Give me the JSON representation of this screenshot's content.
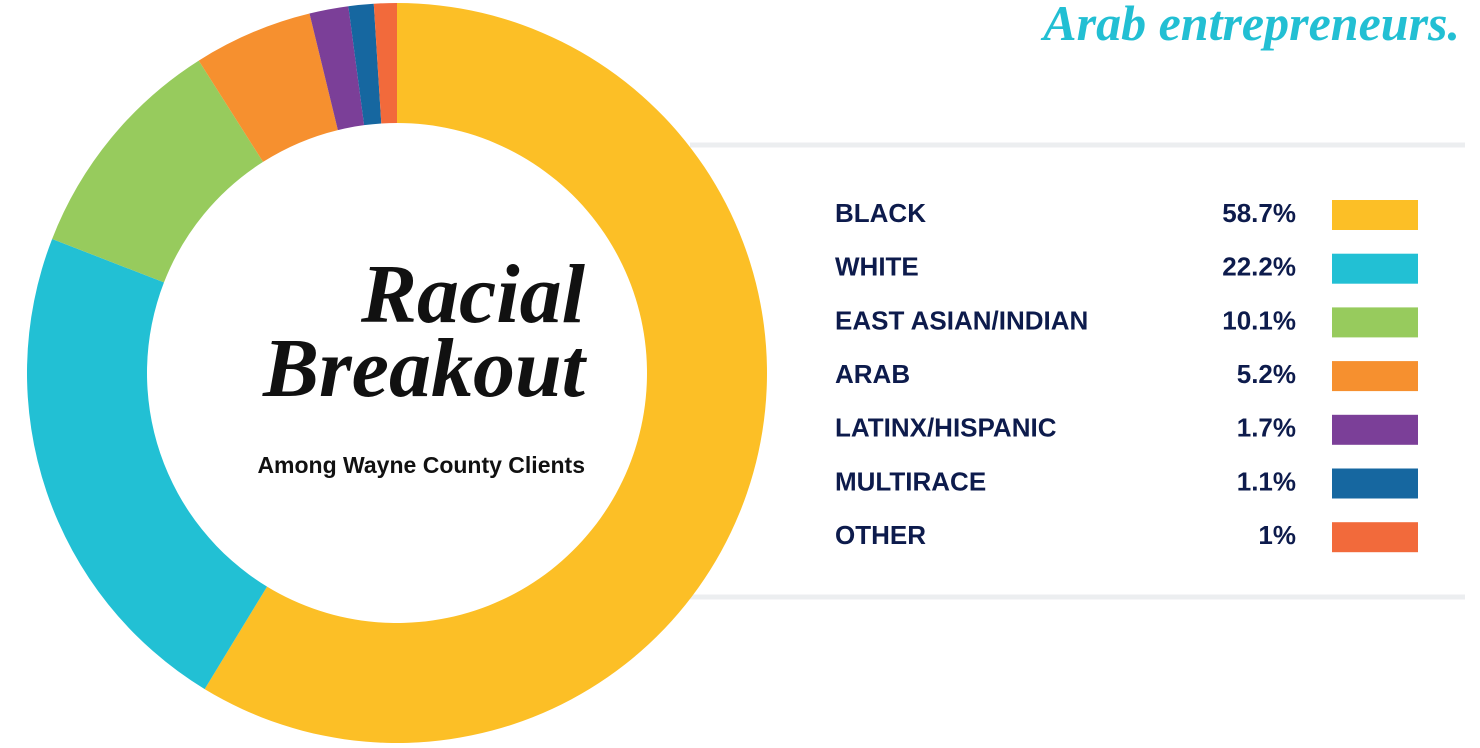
{
  "chart_data": {
    "type": "donut",
    "title": "Racial Breakout",
    "subtitle": "Among Wayne County Clients",
    "annotation": "Arab entrepreneurs.",
    "categories": [
      "BLACK",
      "WHITE",
      "EAST ASIAN/INDIAN",
      "ARAB",
      "LATINX/HISPANIC",
      "MULTIRACE",
      "OTHER"
    ],
    "values": [
      58.7,
      22.2,
      10.1,
      5.2,
      1.7,
      1.1,
      1
    ],
    "value_labels": [
      "58.7%",
      "22.2%",
      "10.1%",
      "5.2%",
      "1.7%",
      "1.1%",
      "1%"
    ],
    "colors": [
      "#fcbf26",
      "#22c0d4",
      "#97cb5d",
      "#f6902f",
      "#7b3f98",
      "#1667a0",
      "#f26a3b"
    ]
  }
}
